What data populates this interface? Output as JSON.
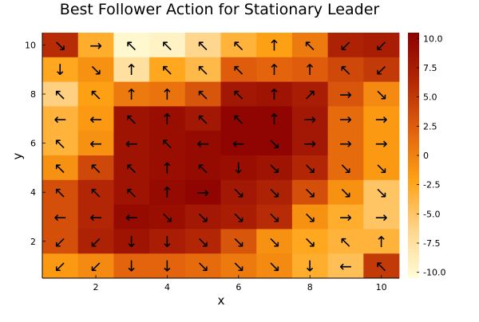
{
  "chart_data": {
    "type": "heatmap",
    "title": "Best Follower Action for Stationary Leader",
    "xlabel": "x",
    "ylabel": "y",
    "x_ticks": [
      2,
      4,
      6,
      8,
      10
    ],
    "y_ticks": [
      2,
      4,
      6,
      8,
      10
    ],
    "xlim": [
      0.5,
      10.5
    ],
    "ylim": [
      0.5,
      10.5
    ],
    "colorbar": {
      "range": [
        -10.5,
        10.5
      ],
      "ticks": [
        -10.0,
        -7.5,
        -5.0,
        -2.5,
        0.0,
        2.5,
        5.0,
        7.5,
        10.0
      ],
      "tick_labels": [
        "-10.0",
        "-7.5",
        "-5.0",
        "-2.5",
        "0",
        "2.5",
        "5.0",
        "7.5",
        "10.0"
      ],
      "colormap": [
        "#fffdd8",
        "#ffd48a",
        "#ffa214",
        "#e2620c",
        "#b42806",
        "#8b0000"
      ]
    },
    "rows_top_to_bottom": [
      {
        "y": 10,
        "values": [
          6.0,
          -3.0,
          -10.0,
          -9.5,
          -6.5,
          -3.5,
          -2.0,
          0.5,
          7.0,
          7.5
        ],
        "actions": [
          "↘",
          "→",
          "↖",
          "↖",
          "↖",
          "↖",
          "↑",
          "↖",
          "↙",
          "↙"
        ]
      },
      {
        "y": 9,
        "values": [
          -2.5,
          -1.0,
          -7.5,
          -2.5,
          -4.0,
          2.5,
          2.0,
          2.5,
          4.0,
          5.0
        ],
        "actions": [
          "↓",
          "↘",
          "↑",
          "↖",
          "↖",
          "↖",
          "↑",
          "↑",
          "↖",
          "↙"
        ]
      },
      {
        "y": 8,
        "values": [
          -6.0,
          -2.0,
          0.5,
          1.0,
          3.0,
          8.0,
          8.5,
          7.5,
          3.0,
          -0.5
        ],
        "actions": [
          "↖",
          "↖",
          "↑",
          "↑",
          "↖",
          "↖",
          "↑",
          "↗",
          "→",
          "↘"
        ]
      },
      {
        "y": 7,
        "values": [
          -3.5,
          -1.5,
          8.5,
          9.0,
          8.0,
          10.0,
          10.0,
          8.0,
          1.5,
          -1.5
        ],
        "actions": [
          "←",
          "←",
          "↖",
          "↑",
          "↖",
          "↖",
          "↑",
          "→",
          "→",
          "→"
        ]
      },
      {
        "y": 6,
        "values": [
          -3.5,
          -1.0,
          8.5,
          9.0,
          9.5,
          10.0,
          10.0,
          8.0,
          1.5,
          -1.5
        ],
        "actions": [
          "↖",
          "←",
          "←",
          "↖",
          "←",
          "←",
          "↘",
          "→",
          "→",
          "→"
        ]
      },
      {
        "y": 5,
        "values": [
          -1.0,
          4.0,
          8.5,
          9.0,
          9.5,
          9.0,
          8.5,
          6.5,
          1.5,
          -1.5
        ],
        "actions": [
          "↖",
          "↖",
          "↖",
          "↑",
          "↖",
          "↓",
          "↘",
          "↘",
          "↘",
          "↘"
        ]
      },
      {
        "y": 4,
        "values": [
          3.5,
          6.5,
          8.5,
          9.5,
          10.0,
          8.0,
          7.0,
          3.5,
          -1.0,
          -5.0
        ],
        "actions": [
          "↖",
          "↖",
          "↖",
          "↑",
          "→",
          "↘",
          "↘",
          "↘",
          "↘",
          "↘"
        ]
      },
      {
        "y": 3,
        "values": [
          3.5,
          6.5,
          9.5,
          9.0,
          8.0,
          7.5,
          6.0,
          -1.0,
          -3.0,
          -5.0
        ],
        "actions": [
          "←",
          "←",
          "←",
          "↘",
          "↘",
          "↘",
          "↘",
          "↘",
          "→",
          "→"
        ]
      },
      {
        "y": 2,
        "values": [
          3.5,
          7.0,
          8.5,
          7.5,
          6.5,
          3.0,
          -1.0,
          -2.5,
          -3.5,
          -3.5
        ],
        "actions": [
          "↙",
          "↙",
          "↓",
          "↓",
          "↘",
          "↘",
          "↘",
          "↘",
          "↖",
          "↑"
        ]
      },
      {
        "y": 1,
        "values": [
          -1.5,
          -0.5,
          2.0,
          2.0,
          1.5,
          0.5,
          -0.5,
          -3.0,
          -4.5,
          5.0
        ],
        "actions": [
          "↙",
          "↙",
          "↓",
          "↓",
          "↘",
          "↘",
          "↘",
          "↓",
          "←",
          "↖"
        ]
      }
    ]
  }
}
